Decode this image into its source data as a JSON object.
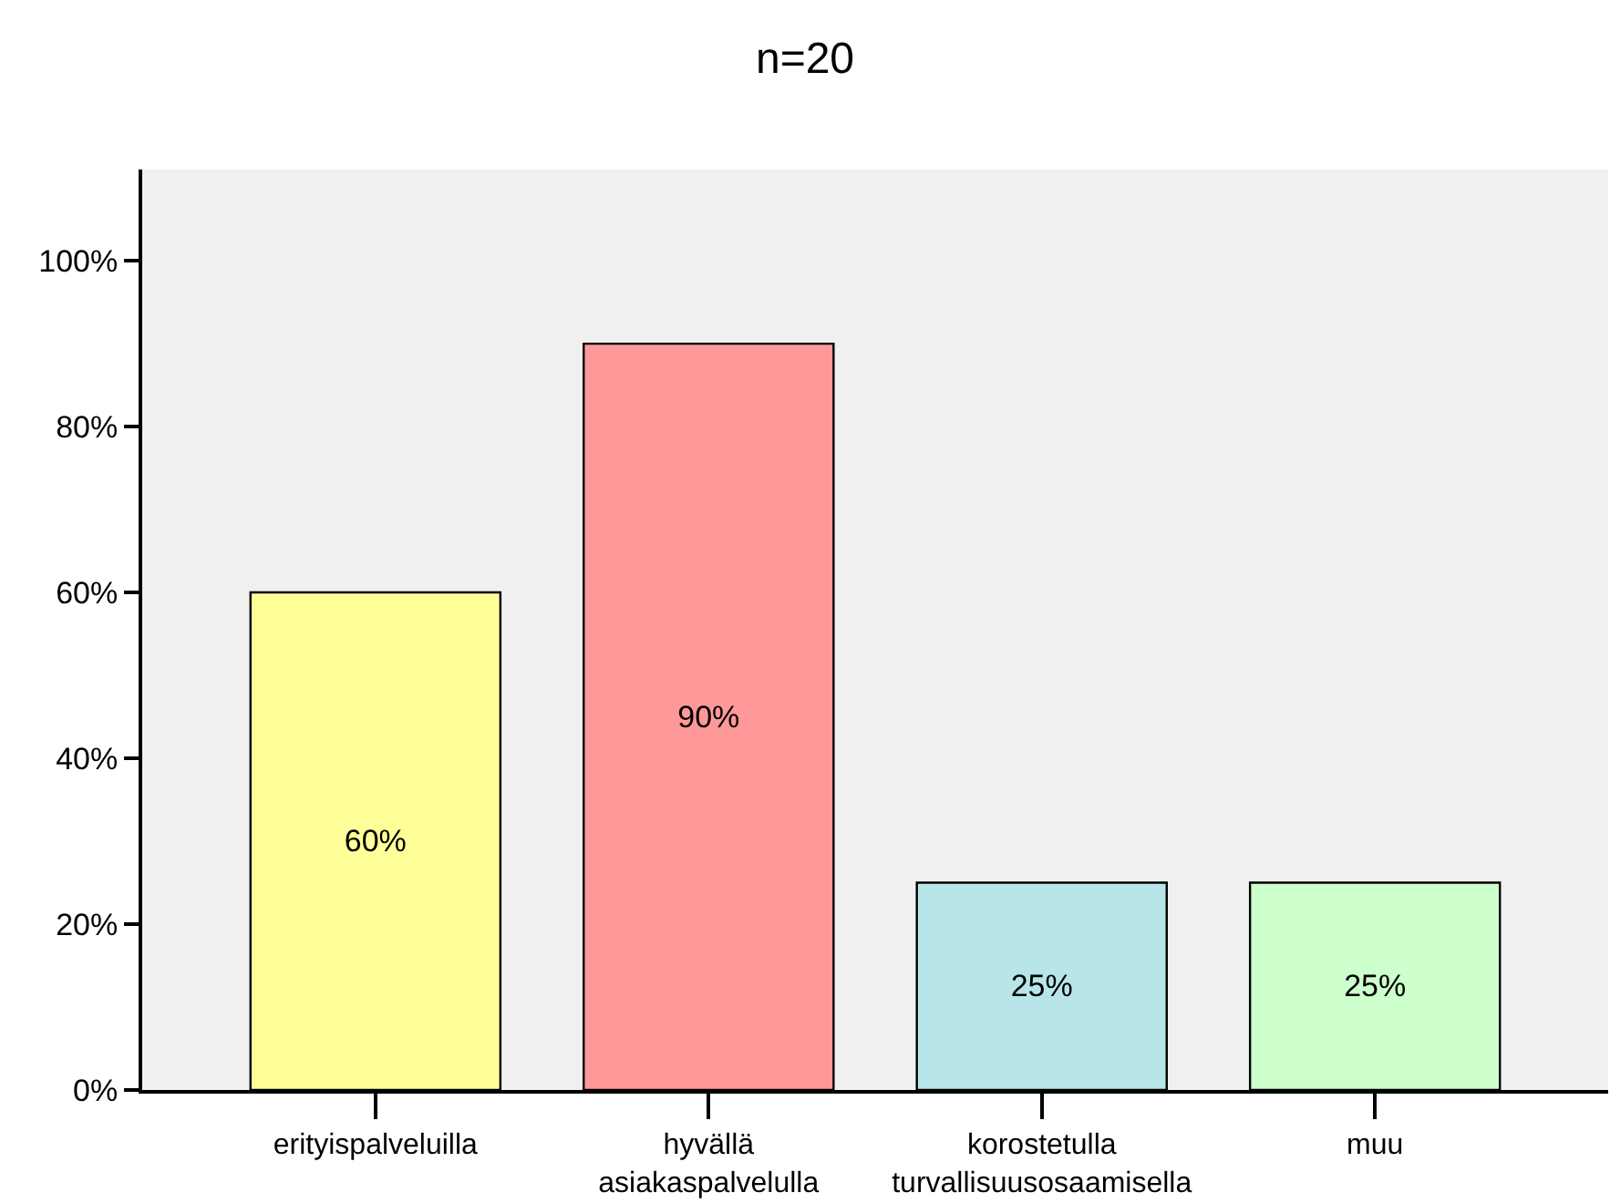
{
  "chart_data": {
    "type": "bar",
    "title": "n=20",
    "categories": [
      "erityispalveluilla",
      "hyvällä asiakaspalvelulla",
      "korostetulla turvallisuusosaamisella",
      "muu"
    ],
    "values": [
      60,
      90,
      25,
      25
    ],
    "colors": [
      "#ffff99",
      "#ff9999",
      "#b8e6e8",
      "#ccffcc"
    ],
    "value_labels": [
      "60%",
      "90%",
      "25%",
      "25%"
    ],
    "ylim": [
      0,
      111
    ],
    "yticks": [
      {
        "value": 0,
        "label": "0%"
      },
      {
        "value": 20,
        "label": "20%"
      },
      {
        "value": 40,
        "label": "40%"
      },
      {
        "value": 60,
        "label": "60%"
      },
      {
        "value": 80,
        "label": "80%"
      },
      {
        "value": 100,
        "label": "100%"
      }
    ],
    "grid": false
  }
}
